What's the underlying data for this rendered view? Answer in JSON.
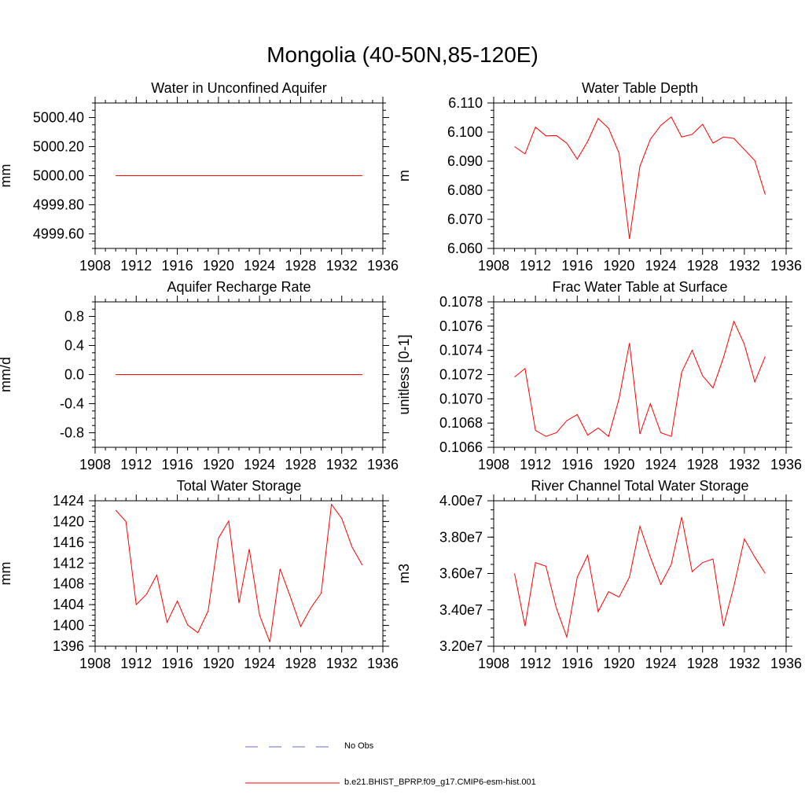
{
  "page": {
    "title": "Mongolia (40-50N,85-120E)"
  },
  "legend": {
    "obs_label": "No Obs",
    "model_label": "b.e21.BHIST_BPRP.f09_g17.CMIP6-esm-hist.001",
    "obs_color": "#6a6acf",
    "model_color": "#ff0000"
  },
  "chart_data": [
    {
      "type": "line",
      "title": "Water in Unconfined Aquifer",
      "ylabel": "mm",
      "xlim": [
        1908,
        1936
      ],
      "xticks": [
        "1908",
        "1912",
        "1916",
        "1920",
        "1924",
        "1928",
        "1932",
        "1936"
      ],
      "ylim": [
        4999.5,
        5000.5
      ],
      "yticks": [
        4999.6,
        4999.8,
        5000.0,
        5000.2,
        5000.4
      ],
      "ytick_labels": [
        "4999.60",
        "4999.80",
        "5000.00",
        "5000.20",
        "5000.40"
      ],
      "x": [
        1910,
        1911,
        1912,
        1913,
        1914,
        1915,
        1916,
        1917,
        1918,
        1919,
        1920,
        1921,
        1922,
        1923,
        1924,
        1925,
        1926,
        1927,
        1928,
        1929,
        1930,
        1931,
        1932,
        1933,
        1934
      ],
      "series": [
        {
          "values": [
            5000,
            5000,
            5000,
            5000,
            5000,
            5000,
            5000,
            5000,
            5000,
            5000,
            5000,
            5000,
            5000,
            5000,
            5000,
            5000,
            5000,
            5000,
            5000,
            5000,
            5000,
            5000,
            5000,
            5000,
            5000
          ]
        }
      ]
    },
    {
      "type": "line",
      "title": "Water Table Depth",
      "ylabel": "m",
      "xlim": [
        1908,
        1936
      ],
      "xticks": [
        "1908",
        "1912",
        "1916",
        "1920",
        "1924",
        "1928",
        "1932",
        "1936"
      ],
      "ylim": [
        6.06,
        6.11
      ],
      "yticks": [
        6.06,
        6.07,
        6.08,
        6.09,
        6.1,
        6.11
      ],
      "ytick_labels": [
        "6.060",
        "6.070",
        "6.080",
        "6.090",
        "6.100",
        "6.110"
      ],
      "x": [
        1910,
        1911,
        1912,
        1913,
        1914,
        1915,
        1916,
        1917,
        1918,
        1919,
        1920,
        1921,
        1922,
        1923,
        1924,
        1925,
        1926,
        1927,
        1928,
        1929,
        1930,
        1931,
        1932,
        1933,
        1934
      ],
      "series": [
        {
          "values": [
            6.095,
            6.0925,
            6.1017,
            6.0987,
            6.0988,
            6.0962,
            6.0907,
            6.0968,
            6.1047,
            6.1013,
            6.0928,
            6.0633,
            6.0882,
            6.0975,
            6.1023,
            6.1052,
            6.0983,
            6.0992,
            6.1027,
            6.0962,
            6.0983,
            6.0978,
            6.094,
            6.0902,
            6.0785
          ]
        }
      ]
    },
    {
      "type": "line",
      "title": "Aquifer Recharge Rate",
      "ylabel": "mm/d",
      "xlim": [
        1908,
        1936
      ],
      "xticks": [
        "1908",
        "1912",
        "1916",
        "1920",
        "1924",
        "1928",
        "1932",
        "1936"
      ],
      "ylim": [
        -1.0,
        1.0
      ],
      "yticks": [
        -0.8,
        -0.4,
        0.0,
        0.4,
        0.8
      ],
      "ytick_labels": [
        "-0.8",
        "-0.4",
        "0.0",
        "0.4",
        "0.8"
      ],
      "x": [
        1910,
        1911,
        1912,
        1913,
        1914,
        1915,
        1916,
        1917,
        1918,
        1919,
        1920,
        1921,
        1922,
        1923,
        1924,
        1925,
        1926,
        1927,
        1928,
        1929,
        1930,
        1931,
        1932,
        1933,
        1934
      ],
      "series": [
        {
          "values": [
            0,
            0,
            0,
            0,
            0,
            0,
            0,
            0,
            0,
            0,
            0,
            0,
            0,
            0,
            0,
            0,
            0,
            0,
            0,
            0,
            0,
            0,
            0,
            0,
            0
          ]
        }
      ]
    },
    {
      "type": "line",
      "title": "Frac Water Table at Surface",
      "ylabel": "unitless [0-1]",
      "xlim": [
        1908,
        1936
      ],
      "xticks": [
        "1908",
        "1912",
        "1916",
        "1920",
        "1924",
        "1928",
        "1932",
        "1936"
      ],
      "ylim": [
        0.1066,
        0.1078
      ],
      "yticks": [
        0.1066,
        0.1068,
        0.107,
        0.1072,
        0.1074,
        0.1076,
        0.1078
      ],
      "ytick_labels": [
        "0.1066",
        "0.1068",
        "0.1070",
        "0.1072",
        "0.1074",
        "0.1076",
        "0.1078"
      ],
      "x": [
        1910,
        1911,
        1912,
        1913,
        1914,
        1915,
        1916,
        1917,
        1918,
        1919,
        1920,
        1921,
        1922,
        1923,
        1924,
        1925,
        1926,
        1927,
        1928,
        1929,
        1930,
        1931,
        1932,
        1933,
        1934
      ],
      "series": [
        {
          "values": [
            0.10718,
            0.10725,
            0.10674,
            0.10669,
            0.10672,
            0.10682,
            0.10687,
            0.1067,
            0.10676,
            0.10669,
            0.107,
            0.10746,
            0.10671,
            0.10696,
            0.10672,
            0.10669,
            0.10722,
            0.1074,
            0.10719,
            0.10709,
            0.10734,
            0.10764,
            0.10745,
            0.10714,
            0.10735
          ]
        }
      ]
    },
    {
      "type": "line",
      "title": "Total Water Storage",
      "ylabel": "mm",
      "xlim": [
        1908,
        1936
      ],
      "xticks": [
        "1908",
        "1912",
        "1916",
        "1920",
        "1924",
        "1928",
        "1932",
        "1936"
      ],
      "ylim": [
        1396,
        1424
      ],
      "yticks": [
        1396,
        1400,
        1404,
        1408,
        1412,
        1416,
        1420,
        1424
      ],
      "ytick_labels": [
        "1396",
        "1400",
        "1404",
        "1408",
        "1412",
        "1416",
        "1420",
        "1424"
      ],
      "x": [
        1910,
        1911,
        1912,
        1913,
        1914,
        1915,
        1916,
        1917,
        1918,
        1919,
        1920,
        1921,
        1922,
        1923,
        1924,
        1925,
        1926,
        1927,
        1928,
        1929,
        1930,
        1931,
        1932,
        1933,
        1934
      ],
      "series": [
        {
          "values": [
            1422.2,
            1420,
            1404,
            1406,
            1409.7,
            1400.6,
            1404.7,
            1400.1,
            1398.6,
            1402.8,
            1416.8,
            1420.1,
            1404.3,
            1414.7,
            1402,
            1396.8,
            1410.9,
            1405.5,
            1399.8,
            1403.4,
            1406.2,
            1423.3,
            1420.6,
            1415.1,
            1411.6
          ]
        }
      ]
    },
    {
      "type": "line",
      "title": "River Channel Total Water Storage",
      "ylabel": "m3",
      "xlim": [
        1908,
        1936
      ],
      "xticks": [
        "1908",
        "1912",
        "1916",
        "1920",
        "1924",
        "1928",
        "1932",
        "1936"
      ],
      "ylim": [
        32000000,
        40000000
      ],
      "yticks": [
        32000000,
        34000000,
        36000000,
        38000000,
        40000000
      ],
      "ytick_labels": [
        "3.20e7",
        "3.40e7",
        "3.60e7",
        "3.80e7",
        "4.00e7"
      ],
      "x": [
        1910,
        1911,
        1912,
        1913,
        1914,
        1915,
        1916,
        1917,
        1918,
        1919,
        1920,
        1921,
        1922,
        1923,
        1924,
        1925,
        1926,
        1927,
        1928,
        1929,
        1930,
        1931,
        1932,
        1933,
        1934
      ],
      "series": [
        {
          "values": [
            36000000,
            33100000,
            36600000,
            36400000,
            34100000,
            32500000,
            35800000,
            37000000,
            33900000,
            35000000,
            34700000,
            35800000,
            38600000,
            36900000,
            35400000,
            36500000,
            39100000,
            36100000,
            36600000,
            36800000,
            33100000,
            35300000,
            37900000,
            36900000,
            36000000
          ]
        }
      ]
    }
  ]
}
